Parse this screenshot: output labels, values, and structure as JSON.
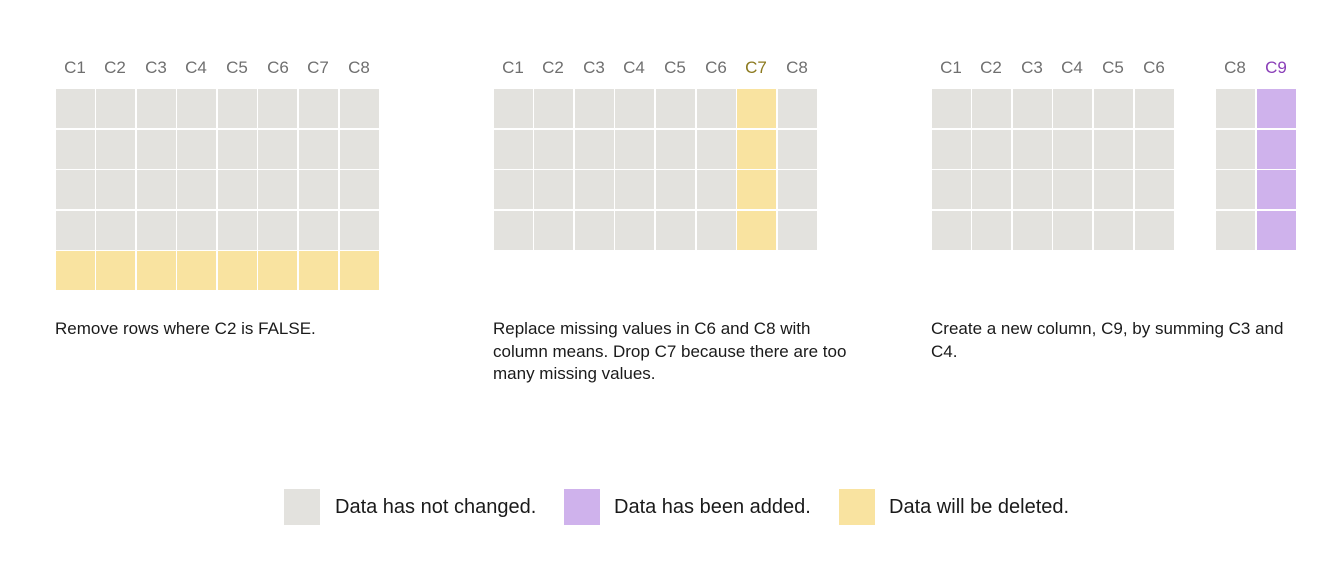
{
  "colors": {
    "unchanged": "#e3e2de",
    "added": "#cfb2ec",
    "deleted": "#f9e3a0",
    "header_default": "#6f6f6f",
    "header_deleted": "#8c7a1f",
    "header_added": "#8a3fb8"
  },
  "panels": [
    {
      "headers": [
        "C1",
        "C2",
        "C3",
        "C4",
        "C5",
        "C6",
        "C7",
        "C8"
      ],
      "caption": "Remove rows where C2 is FALSE."
    },
    {
      "headers": [
        "C1",
        "C2",
        "C3",
        "C4",
        "C5",
        "C6",
        "C7",
        "C8"
      ],
      "caption": "Replace missing values in C6 and C8 with column means. Drop C7 because there are too many missing values."
    },
    {
      "headers": [
        "C1",
        "C2",
        "C3",
        "C4",
        "C5",
        "C6",
        "C8",
        "C9"
      ],
      "caption": "Create a new column, C9, by summing C3 and C4."
    }
  ],
  "legend": {
    "unchanged": "Data has not changed.",
    "added": "Data has been added.",
    "deleted": "Data will be deleted."
  }
}
